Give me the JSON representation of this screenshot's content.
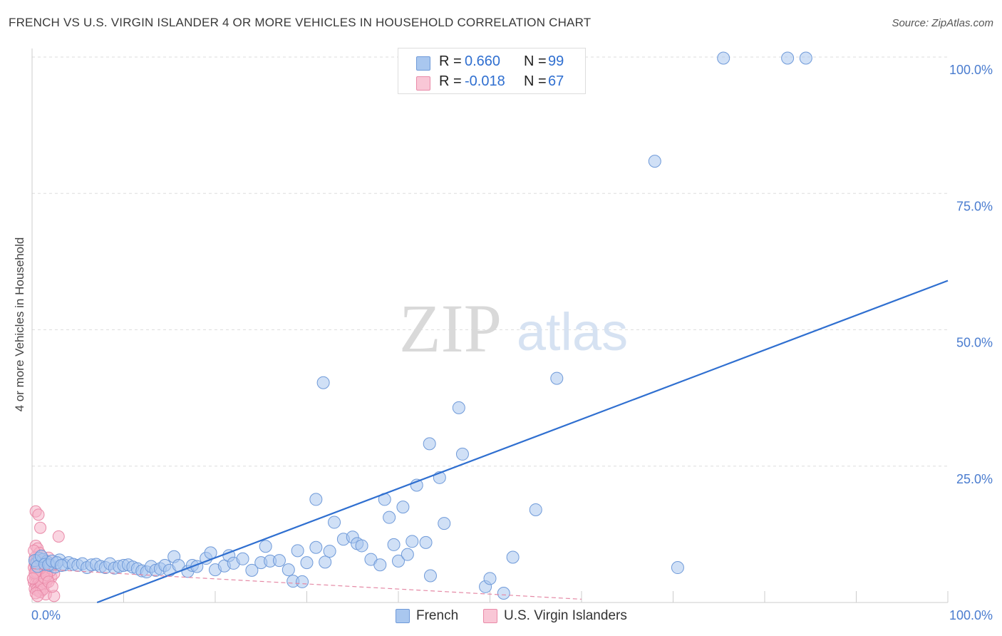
{
  "title": "FRENCH VS U.S. VIRGIN ISLANDER 4 OR MORE VEHICLES IN HOUSEHOLD CORRELATION CHART",
  "source": "Source: ZipAtlas.com",
  "watermark": {
    "zip": "ZIP",
    "atlas": "atlas"
  },
  "colors": {
    "french_fill": "#a9c7ef",
    "french_stroke": "#6f9ad9",
    "french_line": "#2f6fd0",
    "vi_fill": "#f6b3c8",
    "vi_stroke": "#e98aa8",
    "vi_line": "#e58aa6",
    "grid": "#dedede",
    "tick_text": "#4a7ccf"
  },
  "legend": {
    "rows": [
      {
        "r_label": "R =",
        "r_value": "0.660",
        "n_label": "N =",
        "n_value": "99"
      },
      {
        "r_label": "R =",
        "r_value": "-0.018",
        "n_label": "N =",
        "n_value": "67"
      }
    ]
  },
  "bottom_legend": [
    "French",
    "U.S. Virgin Islanders"
  ],
  "chart_data": {
    "type": "scatter",
    "title": "FRENCH VS U.S. VIRGIN ISLANDER 4 OR MORE VEHICLES IN HOUSEHOLD CORRELATION CHART",
    "xlabel": "",
    "ylabel": "4 or more Vehicles in Household",
    "xlim": [
      0,
      100
    ],
    "ylim": [
      0,
      100
    ],
    "x_tick_labels": [
      "0.0%",
      "100.0%"
    ],
    "y_ticks": [
      25,
      50,
      75,
      100
    ],
    "y_tick_labels": [
      "25.0%",
      "50.0%",
      "75.0%",
      "100.0%"
    ],
    "grid": true,
    "series": [
      {
        "name": "French",
        "r": 0.66,
        "n": 99,
        "trend": [
          [
            7.1,
            0
          ],
          [
            100,
            59
          ]
        ],
        "points": [
          [
            0.5,
            7.2
          ],
          [
            0.8,
            8.1
          ],
          [
            1.2,
            7.9
          ],
          [
            1.6,
            7.5
          ],
          [
            2.0,
            6.8
          ],
          [
            2.5,
            6.5
          ],
          [
            3.0,
            7.8
          ],
          [
            3.5,
            6.9
          ],
          [
            4.0,
            7.3
          ],
          [
            4.5,
            7.0
          ],
          [
            5.0,
            6.8
          ],
          [
            5.5,
            7.1
          ],
          [
            6.0,
            6.4
          ],
          [
            6.5,
            6.9
          ],
          [
            7.0,
            7.0
          ],
          [
            7.5,
            6.6
          ],
          [
            8.0,
            6.4
          ],
          [
            8.5,
            7.1
          ],
          [
            9.0,
            6.3
          ],
          [
            9.5,
            6.6
          ],
          [
            10.0,
            6.8
          ],
          [
            10.5,
            6.9
          ],
          [
            11.0,
            6.5
          ],
          [
            11.5,
            6.2
          ],
          [
            12.0,
            5.8
          ],
          [
            12.5,
            5.6
          ],
          [
            13.0,
            6.6
          ],
          [
            13.5,
            5.9
          ],
          [
            14.0,
            6.2
          ],
          [
            14.5,
            6.8
          ],
          [
            15.0,
            5.9
          ],
          [
            15.5,
            8.4
          ],
          [
            16.0,
            6.8
          ],
          [
            17.0,
            5.7
          ],
          [
            17.5,
            6.8
          ],
          [
            18.0,
            6.6
          ],
          [
            19.0,
            8.1
          ],
          [
            19.5,
            9.1
          ],
          [
            20.0,
            6.0
          ],
          [
            21.0,
            6.7
          ],
          [
            21.5,
            8.6
          ],
          [
            22.0,
            7.2
          ],
          [
            23.0,
            8.0
          ],
          [
            24.0,
            5.9
          ],
          [
            25.0,
            7.3
          ],
          [
            25.5,
            10.3
          ],
          [
            26.0,
            7.6
          ],
          [
            27.0,
            7.7
          ],
          [
            28.0,
            6.0
          ],
          [
            28.5,
            3.9
          ],
          [
            29.0,
            9.5
          ],
          [
            29.5,
            3.8
          ],
          [
            30.0,
            7.3
          ],
          [
            31.0,
            10.1
          ],
          [
            32.0,
            7.4
          ],
          [
            32.5,
            9.4
          ],
          [
            31.8,
            40.3
          ],
          [
            31.0,
            18.9
          ],
          [
            33.0,
            14.7
          ],
          [
            34.0,
            11.6
          ],
          [
            35.0,
            12.0
          ],
          [
            35.5,
            10.8
          ],
          [
            36.0,
            10.4
          ],
          [
            37.0,
            7.9
          ],
          [
            38.0,
            6.9
          ],
          [
            38.5,
            18.9
          ],
          [
            39.0,
            15.6
          ],
          [
            39.5,
            10.6
          ],
          [
            40.0,
            7.6
          ],
          [
            40.5,
            17.5
          ],
          [
            41.0,
            8.8
          ],
          [
            41.5,
            11.2
          ],
          [
            42.0,
            21.5
          ],
          [
            43.0,
            11.0
          ],
          [
            43.5,
            4.9
          ],
          [
            43.4,
            29.1
          ],
          [
            44.5,
            22.9
          ],
          [
            45.0,
            14.5
          ],
          [
            46.6,
            35.7
          ],
          [
            47.0,
            27.2
          ],
          [
            49.5,
            2.9
          ],
          [
            50.0,
            4.4
          ],
          [
            51.5,
            1.7
          ],
          [
            52.5,
            8.3
          ],
          [
            55.0,
            17.0
          ],
          [
            57.3,
            41.1
          ],
          [
            68.0,
            80.9
          ],
          [
            70.5,
            6.4
          ],
          [
            75.5,
            99.8
          ],
          [
            82.5,
            99.8
          ],
          [
            84.5,
            99.8
          ],
          [
            0.3,
            7.7
          ],
          [
            0.6,
            6.6
          ],
          [
            1.0,
            8.5
          ],
          [
            1.4,
            7.0
          ],
          [
            1.8,
            6.9
          ],
          [
            2.2,
            7.6
          ],
          [
            2.7,
            7.3
          ],
          [
            3.2,
            6.8
          ]
        ]
      },
      {
        "name": "U.S. Virgin Islanders",
        "r": -0.018,
        "n": 67,
        "trend": [
          [
            0,
            6.2
          ],
          [
            60,
            0.6
          ]
        ],
        "points": [
          [
            0.4,
            16.7
          ],
          [
            0.7,
            16.1
          ],
          [
            0.9,
            13.7
          ],
          [
            2.9,
            12.1
          ],
          [
            0.4,
            10.4
          ],
          [
            0.6,
            9.9
          ],
          [
            0.8,
            9.1
          ],
          [
            1.0,
            8.6
          ],
          [
            0.3,
            8.2
          ],
          [
            0.5,
            7.8
          ],
          [
            0.7,
            7.4
          ],
          [
            0.9,
            7.1
          ],
          [
            1.1,
            6.9
          ],
          [
            1.3,
            6.6
          ],
          [
            0.2,
            6.4
          ],
          [
            0.4,
            6.1
          ],
          [
            0.6,
            5.9
          ],
          [
            0.8,
            5.7
          ],
          [
            1.0,
            5.5
          ],
          [
            1.2,
            5.3
          ],
          [
            1.4,
            5.1
          ],
          [
            0.3,
            4.9
          ],
          [
            0.5,
            4.7
          ],
          [
            0.7,
            4.5
          ],
          [
            0.9,
            4.3
          ],
          [
            1.1,
            4.1
          ],
          [
            1.3,
            3.9
          ],
          [
            0.2,
            3.7
          ],
          [
            0.4,
            3.5
          ],
          [
            0.6,
            3.3
          ],
          [
            0.8,
            3.1
          ],
          [
            1.0,
            2.9
          ],
          [
            1.2,
            2.7
          ],
          [
            0.3,
            2.5
          ],
          [
            0.5,
            2.3
          ],
          [
            0.7,
            2.1
          ],
          [
            0.9,
            1.9
          ],
          [
            1.5,
            1.5
          ],
          [
            2.4,
            1.2
          ],
          [
            2.1,
            4.6
          ],
          [
            2.4,
            5.3
          ],
          [
            1.9,
            6.8
          ],
          [
            2.0,
            5.8
          ],
          [
            1.6,
            6.3
          ],
          [
            1.7,
            4.2
          ],
          [
            1.5,
            3.5
          ],
          [
            1.4,
            7.8
          ],
          [
            1.8,
            8.2
          ],
          [
            0.2,
            9.5
          ],
          [
            0.3,
            7.2
          ],
          [
            0.5,
            6.5
          ],
          [
            0.6,
            5.2
          ],
          [
            0.8,
            4.0
          ],
          [
            1.0,
            3.4
          ],
          [
            1.2,
            2.4
          ],
          [
            0.4,
            1.7
          ],
          [
            0.6,
            1.2
          ],
          [
            1.1,
            5.9
          ],
          [
            1.3,
            4.6
          ],
          [
            0.9,
            6.2
          ],
          [
            0.7,
            6.0
          ],
          [
            0.5,
            5.6
          ],
          [
            0.3,
            5.4
          ],
          [
            1.6,
            5.0
          ],
          [
            1.8,
            3.8
          ],
          [
            2.2,
            2.9
          ],
          [
            0.1,
            4.4
          ]
        ]
      }
    ]
  }
}
